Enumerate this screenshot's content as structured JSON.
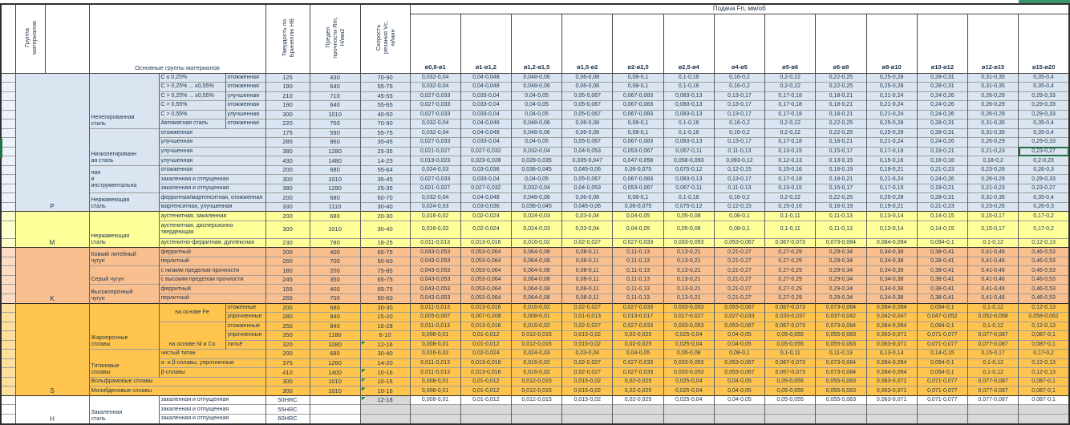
{
  "header": {
    "group_col": "Группа\nматериалов",
    "materials_col": "Основные группы материалов",
    "hardness_col": "Твердость по\nБринеллю HB",
    "strength_col": "Предел\nпрочности Rm,\nН/мм2",
    "speed_col": "Скорость\nрезания Vc,\nм/мин",
    "feed_title": "Подача Fn, мм/об",
    "diameters": [
      "ø0,8-ø1",
      "ø1-ø1,2",
      "ø1,2-ø1,5",
      "ø1,5-ø2",
      "ø2-ø2,5",
      "ø2,5-ø4",
      "ø4-ø5",
      "ø5-ø6",
      "ø6-ø8",
      "ø8-ø10",
      "ø10-ø12",
      "ø12-ø15",
      "ø15-ø20"
    ]
  },
  "colors": {
    "steel_blue": "#DBE5F1",
    "stainless_yellow": "#FFFF99",
    "cast_iron_salmon": "#FABF8F",
    "superalloy_amber": "#FFC44D",
    "empty_gray": "#D9D9D9",
    "selection_green": "#1E7145"
  },
  "selection": {
    "row": 9,
    "column": "ø15-ø20",
    "cell_value": "0,23-0,27"
  },
  "letter_blocks": [
    {
      "letter": "P",
      "start": 1,
      "span": 15,
      "c": "p"
    },
    {
      "letter": "M",
      "start": 16,
      "span": 3,
      "c": "m"
    },
    {
      "letter": "K",
      "start": 19,
      "span": 6,
      "c": "k"
    },
    {
      "letter": "S",
      "start": 25,
      "span": 10,
      "c": "s"
    },
    {
      "letter": "H",
      "start": 35,
      "span": 3,
      "c": "h"
    }
  ],
  "feed_patterns": {
    "A": [
      "0,032-0,04",
      "0,04-0,048",
      "0,048-0,06",
      "0,06-0,08",
      "0,08-0,1",
      "0,1-0,16",
      "0,16-0,2",
      "0,2-0,22",
      "0,22-0,25",
      "0,25-0,28",
      "0,28-0,31",
      "0,31-0,35",
      "0,35-0,4"
    ],
    "B": [
      "0,027-0,033",
      "0,033-0,04",
      "0,04-0,05",
      "0,05-0,067",
      "0,067-0,083",
      "0,083-0,13",
      "0,13-0,17",
      "0,17-0,18",
      "0,18-0,21",
      "0,21-0,24",
      "0,24-0,26",
      "0,26-0,29",
      "0,29-0,33"
    ],
    "C": [
      "0,021-0,027",
      "0,027-0,032",
      "0,032-0,04",
      "0,04-0,053",
      "0,053-0,067",
      "0,067-0,11",
      "0,11-0,13",
      "0,13-0,15",
      "0,15-0,17",
      "0,17-0,19",
      "0,19-0,21",
      "0,21-0,23",
      "0,23-0,27"
    ],
    "D": [
      "0,019-0,023",
      "0,023-0,028",
      "0,028-0,035",
      "0,035-0,047",
      "0,047-0,058",
      "0,058-0,093",
      "0,093-0,12",
      "0,12-0,13",
      "0,13-0,15",
      "0,15-0,16",
      "0,16-0,18",
      "0,18-0,2",
      "0,2-0,23"
    ],
    "E": [
      "0,024-0,03",
      "0,03-0,036",
      "0,036-0,045",
      "0,045-0,06",
      "0,06-0,075",
      "0,075-0,12",
      "0,12-0,15",
      "0,15-0,16",
      "0,16-0,19",
      "0,19-0,21",
      "0,21-0,23",
      "0,23-0,26",
      "0,26-0,3"
    ],
    "F": [
      "0,016-0,02",
      "0,02-0,024",
      "0,024-0,03",
      "0,03-0,04",
      "0,04-0,05",
      "0,05-0,08",
      "0,08-0,1",
      "0,1-0,11",
      "0,11-0,13",
      "0,13-0,14",
      "0,14-0,15",
      "0,15-0,17",
      "0,17-0,2"
    ],
    "G": [
      "0,011-0,013",
      "0,013-0,016",
      "0,016-0,02",
      "0,02-0,027",
      "0,027-0,033",
      "0,033-0,053",
      "0,053-0,067",
      "0,067-0,073",
      "0,073-0,084",
      "0,084-0,094",
      "0,094-0,1",
      "0,1-0,12",
      "0,12-0,13"
    ],
    "H": [
      "0,043-0,053",
      "0,053-0,064",
      "0,064-0,08",
      "0,08-0,11",
      "0,11-0,13",
      "0,13-0,21",
      "0,21-0,27",
      "0,27-0,29",
      "0,29-0,34",
      "0,34-0,38",
      "0,38-0,41",
      "0,41-0,46",
      "0,46-0,53"
    ],
    "I": [
      "0,005-0,007",
      "0,007-0,008",
      "0,008-0,01",
      "0,01-0,013",
      "0,013-0,017",
      "0,017-0,027",
      "0,027-0,033",
      "0,033-0,037",
      "0,037-0,042",
      "0,042-0,047",
      "0,047-0,052",
      "0,052-0,058",
      "0,058-0,062"
    ],
    "J": [
      "0,008-0,01",
      "0,01-0,012",
      "0,012-0,015",
      "0,015-0,02",
      "0,02-0,025",
      "0,025-0,04",
      "0,04-0,05",
      "0,05-0,055",
      "0,055-0,063",
      "0,063-0,071",
      "0,071-0,077",
      "0,077-0,087",
      "0,087-0,1"
    ],
    "X": [
      "",
      "",
      "",
      "",
      "",
      "",
      "",
      "",
      "",
      "",
      "",
      "",
      ""
    ]
  },
  "rows": [
    {
      "c": "p",
      "labels": [
        {
          "col": "group",
          "rs": 6,
          "t": "Нелегированная\nсталь",
          "va": "b"
        },
        {
          "col": "sub1",
          "t": "C ≤ 0,25%"
        },
        {
          "col": "sub2",
          "t": "отожженная"
        }
      ],
      "hb": "125",
      "rm": "430",
      "vc": "70-90",
      "f": "A"
    },
    {
      "labels": [
        {
          "col": "sub1",
          "t": "C > 0,25% ... ≤0,55%"
        },
        {
          "col": "sub2",
          "t": "отожженная"
        }
      ],
      "hb": "190",
      "rm": "640",
      "vc": "55-75",
      "f": "A"
    },
    {
      "labels": [
        {
          "col": "sub1",
          "t": "C > 0,25% ... ≤0,55%"
        },
        {
          "col": "sub2",
          "t": "улучшенная"
        }
      ],
      "hb": "210",
      "rm": "710",
      "vc": "45-55",
      "f": "B"
    },
    {
      "labels": [
        {
          "col": "sub1",
          "t": "C > 0,55%"
        },
        {
          "col": "sub2",
          "t": "отожженная"
        }
      ],
      "hb": "190",
      "rm": "640",
      "vc": "55-65",
      "f": "B"
    },
    {
      "labels": [
        {
          "col": "sub1",
          "t": "C > 0,55%"
        },
        {
          "col": "sub2",
          "t": "улучшенная"
        }
      ],
      "hb": "300",
      "rm": "1010",
      "vc": "40-50",
      "f": "B"
    },
    {
      "labels": [
        {
          "col": "sub1",
          "t": "Автоматная сталь"
        },
        {
          "col": "sub2",
          "t": "отожженная"
        }
      ],
      "hb": "220",
      "rm": "750",
      "vc": "70-90",
      "f": "A"
    },
    {
      "labels": [
        {
          "col": "group",
          "rs": 4,
          "t": "Низколегированн\nая сталь",
          "va": "b"
        },
        {
          "col": "sub12",
          "t": "отожженная"
        }
      ],
      "hb": "175",
      "rm": "590",
      "vc": "55-75",
      "f": "A"
    },
    {
      "labels": [
        {
          "col": "sub12",
          "t": "улучшенная"
        }
      ],
      "hb": "285",
      "rm": "960",
      "vc": "35-45",
      "f": "B"
    },
    {
      "labels": [
        {
          "col": "sub12",
          "t": "улучшенная"
        }
      ],
      "hb": "380",
      "rm": "1280",
      "vc": "25-35",
      "f": "C",
      "sel": 12
    },
    {
      "labels": [
        {
          "col": "sub12",
          "t": "улучшенная"
        }
      ],
      "hb": "430",
      "rm": "1480",
      "vc": "14-25",
      "f": "D"
    },
    {
      "labels": [
        {
          "col": "group",
          "rs": 3,
          "t": "ная\nи\nинструментальна",
          "va": "m"
        },
        {
          "col": "sub12",
          "t": "отожженная"
        }
      ],
      "hb": "200",
      "rm": "680",
      "vc": "55-64",
      "f": "E"
    },
    {
      "labels": [
        {
          "col": "sub12",
          "t": "закаленная и отпущенная"
        }
      ],
      "hb": "300",
      "rm": "1010",
      "vc": "35-45",
      "f": "B"
    },
    {
      "labels": [
        {
          "col": "sub12",
          "t": "закаленная и отпущенная"
        }
      ],
      "hb": "380",
      "rm": "1280",
      "vc": "25-35",
      "f": "C"
    },
    {
      "labels": [
        {
          "col": "group",
          "rs": 2,
          "t": "Нержавеющая\nсталь",
          "va": "b"
        },
        {
          "col": "sub12",
          "t": "ферритная/мартенситная, отожженная"
        }
      ],
      "hb": "200",
      "rm": "680",
      "vc": "60-70",
      "f": "A"
    },
    {
      "labels": [
        {
          "col": "sub12",
          "t": "мартенситная, улучшенная"
        }
      ],
      "hb": "330",
      "rm": "1110",
      "vc": "30-40",
      "f": "E"
    },
    {
      "c": "m",
      "gt": 1,
      "labels": [
        {
          "col": "group",
          "rs": 3,
          "t": "Нержавеющая\nсталь",
          "va": "b"
        },
        {
          "col": "sub12",
          "t": "аустенитная, закаленная"
        }
      ],
      "hb": "200",
      "rm": "680",
      "vc": "20-30",
      "f": "F"
    },
    {
      "labels": [
        {
          "col": "sub12",
          "t": "аустенитная, дисперсионно твердеющая"
        }
      ],
      "hb": "300",
      "rm": "1010",
      "vc": "30-40",
      "f": "F"
    },
    {
      "labels": [
        {
          "col": "sub12",
          "t": "аустенитно-ферритная, дуплексная"
        }
      ],
      "hb": "230",
      "rm": "780",
      "vc": "18-25",
      "f": "G"
    },
    {
      "c": "k",
      "gt": 1,
      "labels": [
        {
          "col": "group",
          "rs": 2,
          "t": "Ковкий литейный\nчугун",
          "va": "b"
        },
        {
          "col": "sub12",
          "t": "ферритный"
        }
      ],
      "hb": "200",
      "rm": "400",
      "vc": "65-75",
      "f": "H"
    },
    {
      "labels": [
        {
          "col": "sub12",
          "t": "перлитный"
        }
      ],
      "hb": "260",
      "rm": "700",
      "vc": "50-60",
      "f": "H"
    },
    {
      "labels": [
        {
          "col": "group",
          "rs": 2,
          "t": "Серый чугун",
          "va": "b"
        },
        {
          "col": "sub12",
          "t": "с низким пределом прочности"
        }
      ],
      "hb": "180",
      "rm": "200",
      "vc": "75-85",
      "f": "H"
    },
    {
      "labels": [
        {
          "col": "sub12",
          "t": "с высоким пределом прочности"
        }
      ],
      "hb": "245",
      "rm": "350",
      "vc": "65-75",
      "f": "H"
    },
    {
      "labels": [
        {
          "col": "group",
          "rs": 2,
          "t": "Высокопрочный\nчугун",
          "va": "b"
        },
        {
          "col": "sub12",
          "t": "ферритный"
        }
      ],
      "hb": "155",
      "rm": "400",
      "vc": "65-75",
      "f": "H"
    },
    {
      "labels": [
        {
          "col": "sub12",
          "t": "перлитный"
        }
      ],
      "hb": "265",
      "rm": "700",
      "vc": "50-60",
      "f": "H"
    },
    {
      "c": "s",
      "gt": 1,
      "labels": [
        {
          "col": "group",
          "rs": 5,
          "t": "Жаропрочные\nсплавы",
          "va": "b"
        },
        {
          "col": "sub1",
          "rs": 2,
          "t": "на основе Fe",
          "ctr": 1
        },
        {
          "col": "sub2",
          "t": "отоженные"
        }
      ],
      "hb": "200",
      "rm": "680",
      "vc": "20-30",
      "f": "G"
    },
    {
      "labels": [
        {
          "col": "sub2",
          "t": "упрочненные"
        }
      ],
      "hb": "280",
      "rm": "940",
      "vc": "15-20",
      "f": "I"
    },
    {
      "labels": [
        {
          "col": "sub1",
          "rs": 3,
          "t": "на основе Ni и Co",
          "ctr": 1,
          "va": "b"
        },
        {
          "col": "sub2",
          "t": "отожженные"
        }
      ],
      "hb": "250",
      "rm": "840",
      "vc": "16-28",
      "f": "G"
    },
    {
      "labels": [
        {
          "col": "sub2",
          "t": "упрочненные"
        }
      ],
      "hb": "350",
      "rm": "1180",
      "vc": "6-10",
      "f": "J"
    },
    {
      "labels": [
        {
          "col": "sub2",
          "t": "литьё"
        }
      ],
      "hb": "320",
      "rm": "1080",
      "vc": "12-16",
      "tri": 1,
      "f": "J"
    },
    {
      "labels": [
        {
          "col": "group",
          "rs": 3,
          "t": "Титановые\nсплавы",
          "va": "b"
        },
        {
          "col": "sub12",
          "t": "чистый титан"
        }
      ],
      "hb": "200",
      "rm": "680",
      "vc": "30-40",
      "f": "F"
    },
    {
      "labels": [
        {
          "col": "sub12",
          "t": "α- и β-сплавы, упрочненные"
        }
      ],
      "hb": "375",
      "rm": "1260",
      "vc": "14-20",
      "f": "G"
    },
    {
      "labels": [
        {
          "col": "sub12",
          "t": "β-сплавы"
        }
      ],
      "hb": "410",
      "rm": "1400",
      "vc": "10-16",
      "tri": 1,
      "f": "G"
    },
    {
      "labels": [
        {
          "col": "g123",
          "t": "Вольфрамовые сплавы"
        }
      ],
      "hb": "300",
      "rm": "1010",
      "vc": "10-16",
      "tri": 1,
      "f": "J"
    },
    {
      "labels": [
        {
          "col": "g123",
          "t": "Молибденовые сплавы"
        }
      ],
      "hb": "300",
      "rm": "1010",
      "vc": "10-16",
      "tri": 1,
      "f": "J"
    },
    {
      "c": "h",
      "gt": 1,
      "labels": [
        {
          "col": "group",
          "rs": 3,
          "t": "Закаленная\nсталь",
          "va": "b"
        },
        {
          "col": "sub12",
          "t": "закаленная и отпущенная"
        }
      ],
      "hb": "50HRC",
      "rm": "",
      "vc": "12-18",
      "tri": 1,
      "vcg": 1,
      "f": "J"
    },
    {
      "labels": [
        {
          "col": "sub12",
          "t": "закаленная и отпущенная"
        }
      ],
      "hb": "55HRC",
      "rm": "",
      "vc": "",
      "vcg": 1,
      "dg": 1,
      "f": "X"
    },
    {
      "labels": [
        {
          "col": "sub12",
          "t": "закаленная и отпущенная"
        }
      ],
      "hb": "60HRC",
      "rm": "",
      "vc": "",
      "vcg": 1,
      "dg": 1,
      "f": "X"
    }
  ]
}
